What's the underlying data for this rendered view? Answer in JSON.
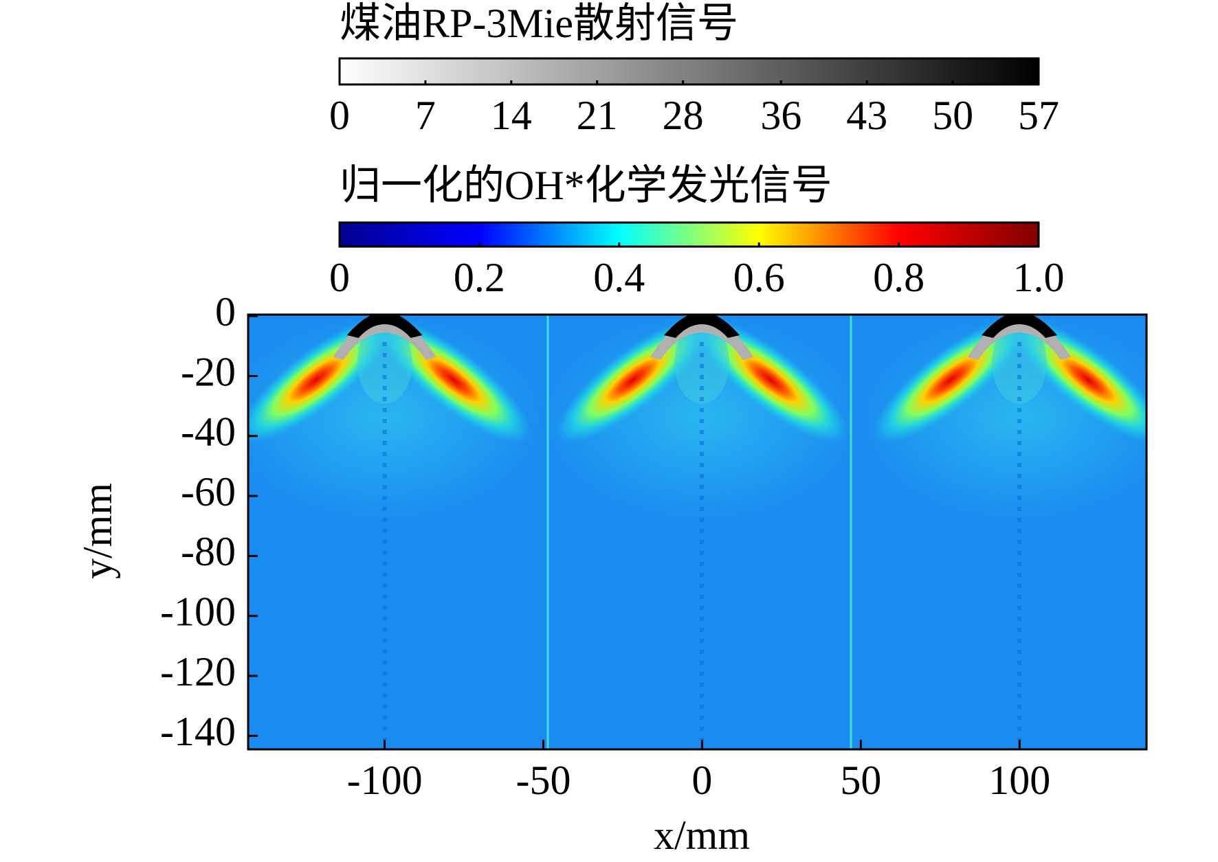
{
  "chart_data": {
    "type": "heatmap",
    "x_label": "x/mm",
    "y_label": "y/mm",
    "xlim": [
      -143,
      140
    ],
    "xticks": [
      -100,
      -50,
      0,
      50,
      100
    ],
    "ylim": [
      -144.5,
      0.5
    ],
    "yticks": [
      0,
      -20,
      -40,
      -60,
      -80,
      -100,
      -120,
      -140
    ],
    "colorbars": [
      {
        "title": "煤油RP-3Mie散射信号",
        "lim": [
          0,
          57
        ],
        "ticks": [
          0,
          7,
          14,
          21,
          28,
          36,
          43,
          50,
          57
        ],
        "colors": [
          "#ffffff",
          "#000000"
        ]
      },
      {
        "title": "归一化的OH*化学发光信号",
        "lim": [
          0,
          1
        ],
        "ticks": [
          0,
          0.2,
          0.4,
          0.6,
          0.8,
          {
            "value": 1,
            "label": "1.0"
          }
        ],
        "colors": [
          "#00008f",
          "#0000ff",
          "#00ffff",
          "#ffff00",
          "#ff0000",
          "#800000"
        ]
      }
    ]
  }
}
